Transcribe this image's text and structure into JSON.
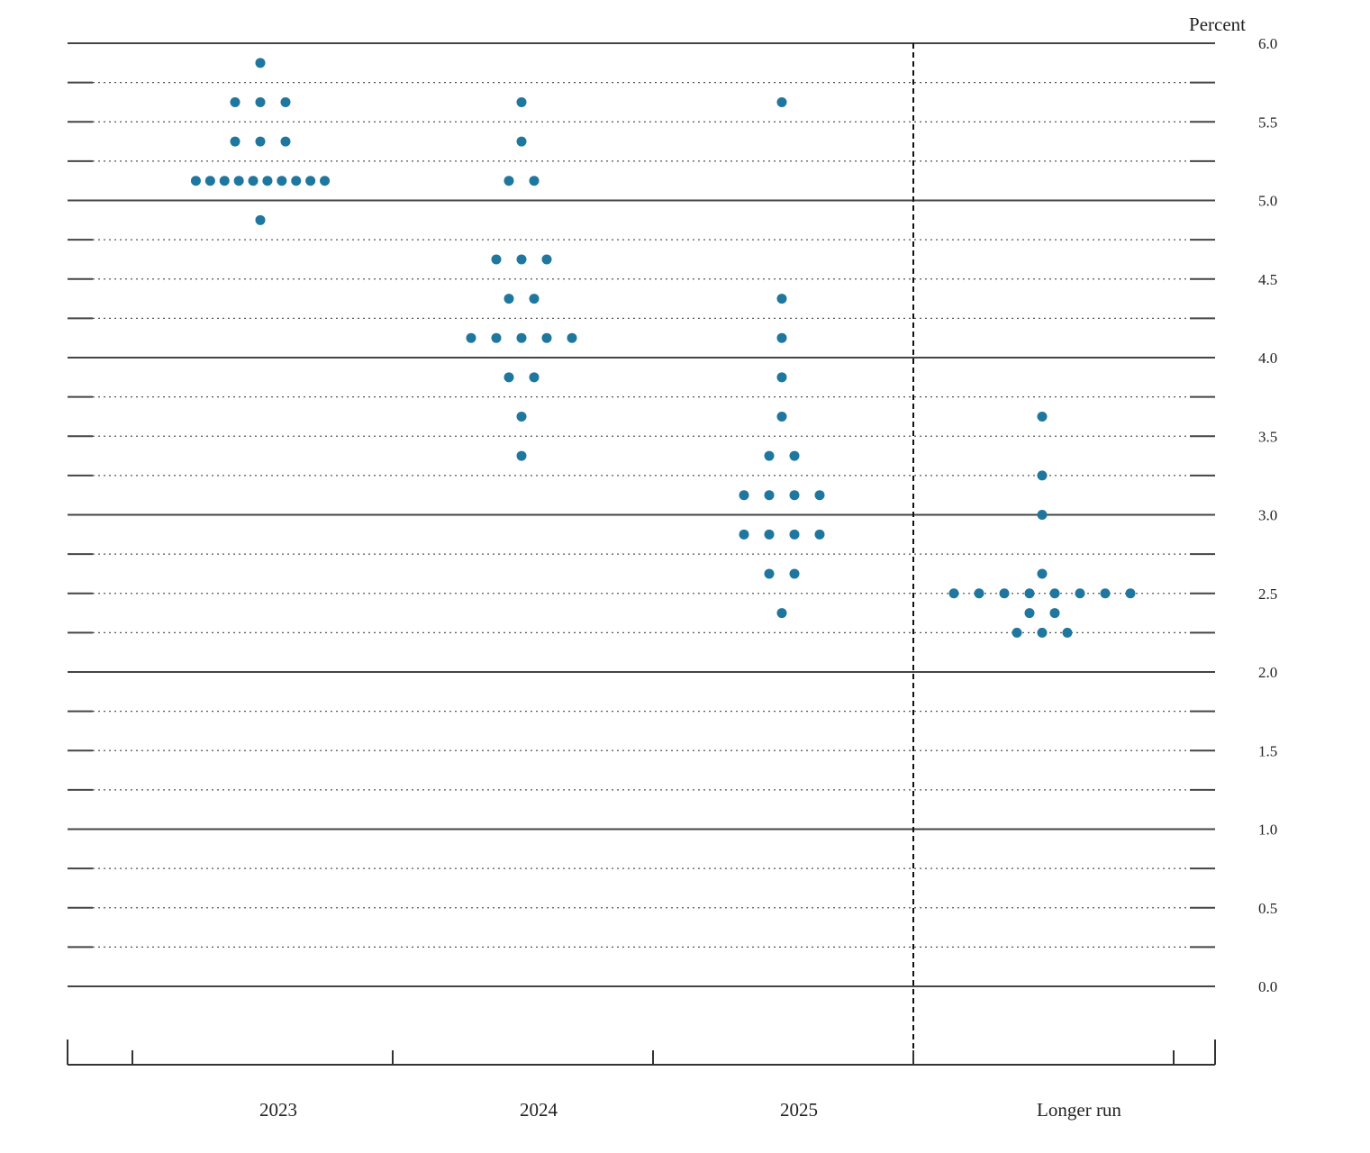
{
  "chart_data": {
    "type": "scatter",
    "subtype": "dot-plot",
    "ylabel": "Percent",
    "ylim": [
      0,
      6
    ],
    "y_major_ticks": [
      0.0,
      1.0,
      2.0,
      3.0,
      4.0,
      5.0,
      6.0
    ],
    "y_tick_labels": [
      "0.0",
      "0.5",
      "1.0",
      "1.5",
      "2.0",
      "2.5",
      "3.0",
      "3.5",
      "4.0",
      "4.5",
      "5.0",
      "5.5",
      "6.0"
    ],
    "grid": "dotted every 0.25, solid at whole numbers",
    "categories": [
      "2023",
      "2024",
      "2025",
      "Longer run"
    ],
    "divider_after_category": "2025",
    "dot_color": "#1f77a0",
    "series": [
      {
        "name": "2023",
        "dots": [
          {
            "y": 5.875,
            "count": 1
          },
          {
            "y": 5.625,
            "count": 3
          },
          {
            "y": 5.375,
            "count": 3
          },
          {
            "y": 5.125,
            "count": 10
          },
          {
            "y": 4.875,
            "count": 1
          }
        ]
      },
      {
        "name": "2024",
        "dots": [
          {
            "y": 5.625,
            "count": 1
          },
          {
            "y": 5.375,
            "count": 1
          },
          {
            "y": 5.125,
            "count": 2
          },
          {
            "y": 4.625,
            "count": 3
          },
          {
            "y": 4.375,
            "count": 2
          },
          {
            "y": 4.125,
            "count": 5
          },
          {
            "y": 3.875,
            "count": 2
          },
          {
            "y": 3.625,
            "count": 1
          },
          {
            "y": 3.375,
            "count": 1
          }
        ]
      },
      {
        "name": "2025",
        "dots": [
          {
            "y": 5.625,
            "count": 1
          },
          {
            "y": 4.375,
            "count": 1
          },
          {
            "y": 4.125,
            "count": 1
          },
          {
            "y": 3.875,
            "count": 1
          },
          {
            "y": 3.625,
            "count": 1
          },
          {
            "y": 3.375,
            "count": 2
          },
          {
            "y": 3.125,
            "count": 4
          },
          {
            "y": 2.875,
            "count": 4
          },
          {
            "y": 2.625,
            "count": 2
          },
          {
            "y": 2.375,
            "count": 1
          }
        ]
      },
      {
        "name": "Longer run",
        "dots": [
          {
            "y": 3.625,
            "count": 1
          },
          {
            "y": 3.25,
            "count": 1
          },
          {
            "y": 3.0,
            "count": 1
          },
          {
            "y": 2.625,
            "count": 1
          },
          {
            "y": 2.5,
            "count": 8
          },
          {
            "y": 2.375,
            "count": 2
          },
          {
            "y": 2.25,
            "count": 3
          }
        ]
      }
    ]
  }
}
